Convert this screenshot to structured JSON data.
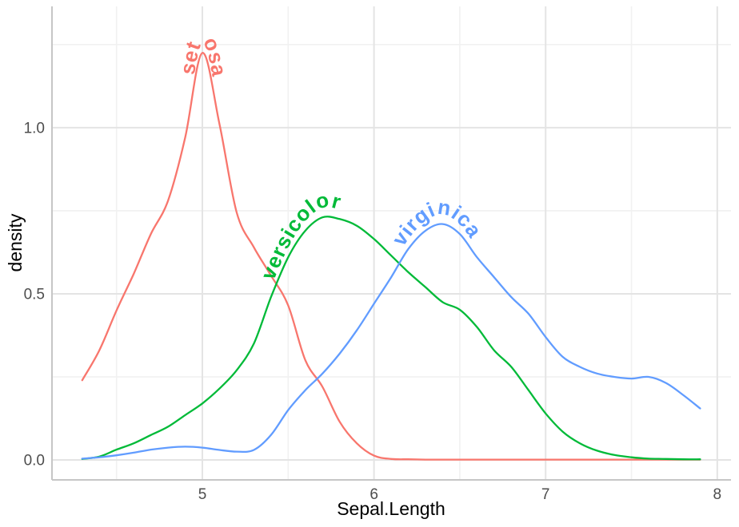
{
  "figure": {
    "background": "#ffffff",
    "panel_background": "#ffffff",
    "grid_major_color": "#E4E4E4",
    "grid_minor_color": "#F1F1F1",
    "axis_line_color": "#C6C6C6",
    "tick_label_color": "#4D4D4D",
    "axis_title_color": "#000000"
  },
  "chart_data": {
    "type": "line",
    "subtype": "kernel-density",
    "title": "",
    "xlabel": "Sepal.Length",
    "ylabel": "density",
    "grid": true,
    "legend_position": "curved labels on lines",
    "xlim": [
      4.124,
      8.08
    ],
    "ylim": [
      -0.06,
      1.365
    ],
    "x_ticks": [
      5,
      6,
      7,
      8
    ],
    "x_tick_labels": [
      "5",
      "6",
      "7",
      "8"
    ],
    "x_minor_ticks": [
      4.5,
      5.5,
      6.5,
      7.5
    ],
    "y_ticks": [
      0.0,
      0.5,
      1.0
    ],
    "y_tick_labels": [
      "0.0",
      "0.5",
      "1.0"
    ],
    "y_minor_ticks": [
      0.25,
      0.75,
      1.25
    ],
    "x": [
      4.3,
      4.4,
      4.5,
      4.6,
      4.7,
      4.8,
      4.9,
      5.0,
      5.1,
      5.2,
      5.3,
      5.4,
      5.5,
      5.6,
      5.7,
      5.8,
      5.9,
      6.0,
      6.1,
      6.2,
      6.3,
      6.4,
      6.5,
      6.6,
      6.7,
      6.8,
      6.9,
      7.0,
      7.1,
      7.2,
      7.3,
      7.4,
      7.5,
      7.6,
      7.7,
      7.8,
      7.9
    ],
    "series": [
      {
        "name": "setosa",
        "label": "setosa",
        "color": "#F8766D",
        "label_window": [
          4.6,
          5.4
        ],
        "label_offset": -12,
        "peak": {
          "x": 5.0,
          "density": 1.24
        },
        "values": [
          0.24,
          0.33,
          0.45,
          0.56,
          0.68,
          0.78,
          0.97,
          1.225,
          1.01,
          0.745,
          0.64,
          0.555,
          0.465,
          0.3,
          0.22,
          0.115,
          0.05,
          0.013,
          0.003,
          0.002,
          0.001,
          0.001,
          0.001,
          0.001,
          0.001,
          0.001,
          0.001,
          0.001,
          0.001,
          0.001,
          0.001,
          0.001,
          0.001,
          0.001,
          0.001,
          0.001,
          0.001
        ]
      },
      {
        "name": "versicolor",
        "label": "versicolor",
        "color": "#00BA38",
        "label_window": [
          5.2,
          6.2
        ],
        "label_offset": -12,
        "peak": {
          "x": 5.72,
          "density": 0.73
        },
        "values": [
          0.003,
          0.01,
          0.031,
          0.05,
          0.075,
          0.1,
          0.135,
          0.17,
          0.215,
          0.27,
          0.35,
          0.49,
          0.61,
          0.69,
          0.73,
          0.725,
          0.705,
          0.665,
          0.615,
          0.565,
          0.52,
          0.475,
          0.452,
          0.4,
          0.33,
          0.28,
          0.21,
          0.14,
          0.085,
          0.05,
          0.028,
          0.015,
          0.008,
          0.004,
          0.003,
          0.002,
          0.002
        ]
      },
      {
        "name": "virginica",
        "label": "virginica",
        "color": "#619CFF",
        "label_window": [
          5.9,
          6.9
        ],
        "label_offset": -12,
        "peak": {
          "x": 6.38,
          "density": 0.71
        },
        "values": [
          0.004,
          0.008,
          0.014,
          0.022,
          0.031,
          0.037,
          0.04,
          0.037,
          0.03,
          0.025,
          0.03,
          0.075,
          0.15,
          0.21,
          0.26,
          0.32,
          0.39,
          0.47,
          0.55,
          0.635,
          0.69,
          0.71,
          0.68,
          0.61,
          0.55,
          0.49,
          0.44,
          0.37,
          0.31,
          0.28,
          0.26,
          0.25,
          0.245,
          0.25,
          0.232,
          0.196,
          0.155
        ]
      }
    ]
  }
}
